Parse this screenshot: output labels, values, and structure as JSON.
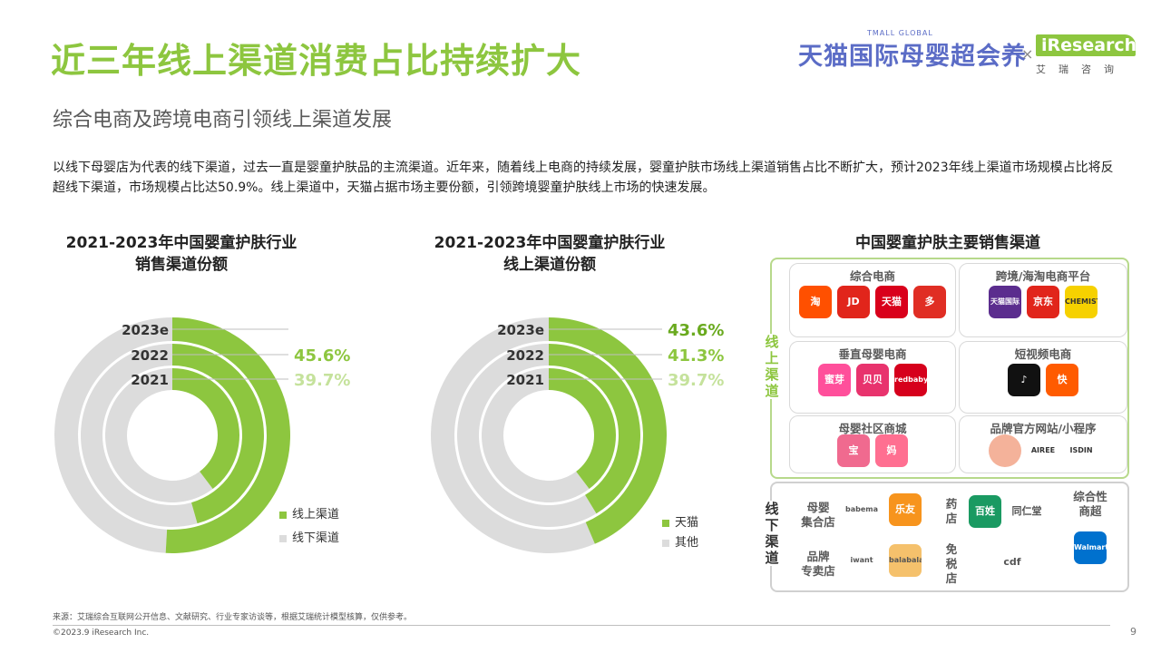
{
  "header": {
    "title": "近三年线上渠道消费占比持续扩大",
    "subtitle": "综合电商及跨境电商引领线上渠道发展",
    "description": "以线下母婴店为代表的线下渠道，过去一直是婴童护肤品的主流渠道。近年来，随着线上电商的持续发展，婴童护肤市场线上渠道销售占比不断扩大，预计2023年线上渠道市场规模占比将反超线下渠道，市场规模占比达50.9%。线上渠道中，天猫占据市场主要份额，引领跨境婴童护肤线上市场的快速发展。"
  },
  "brand": {
    "tmall_global": "TMALL GLOBAL",
    "tmall_name": "天猫国际母婴超会养",
    "times": "×",
    "iresearch": "iResearch",
    "iresearch_cn": "艾瑞咨询"
  },
  "chart_data": [
    {
      "type": "donut",
      "title": "2021-2023年中国婴童护肤行业 销售渠道份额",
      "title_lines": [
        "2021-2023年中国婴童护肤行业",
        "销售渠道份额"
      ],
      "rings": [
        "2023e",
        "2022",
        "2021"
      ],
      "series": [
        {
          "name": "线上渠道",
          "values": [
            50.9,
            45.6,
            39.7
          ]
        },
        {
          "name": "线下渠道",
          "values": [
            49.1,
            54.4,
            60.3
          ]
        }
      ],
      "value_labels": [
        "",
        "45.6%",
        "39.7%"
      ],
      "colors": {
        "线上渠道": "#8dc63f",
        "线下渠道": "#dcdcdc"
      }
    },
    {
      "type": "donut",
      "title": "2021-2023年中国婴童护肤行业 线上渠道份额",
      "title_lines": [
        "2021-2023年中国婴童护肤行业",
        "线上渠道份额"
      ],
      "rings": [
        "2023e",
        "2022",
        "2021"
      ],
      "series": [
        {
          "name": "天猫",
          "values": [
            43.6,
            41.3,
            39.7
          ]
        },
        {
          "name": "其他",
          "values": [
            56.4,
            58.7,
            60.3
          ]
        }
      ],
      "value_labels": [
        "43.6%",
        "41.3%",
        "39.7%"
      ],
      "colors": {
        "天猫": "#8dc63f",
        "其他": "#dcdcdc"
      }
    }
  ],
  "channels": {
    "title": "中国婴童护肤主要销售渠道",
    "online_label": "线上渠道",
    "offline_label": "线下渠道",
    "online_groups": [
      {
        "title": "综合电商",
        "logos": [
          {
            "name": "taobao",
            "text": "淘",
            "color": "#ff5000"
          },
          {
            "name": "jd",
            "text": "JD",
            "color": "#e1251b"
          },
          {
            "name": "tmall",
            "text": "天猫",
            "color": "#d9001b"
          },
          {
            "name": "pinduoduo",
            "text": "多",
            "color": "#e02e24"
          }
        ]
      },
      {
        "title": "跨境/海淘电商平台",
        "logos": [
          {
            "name": "tmall-global",
            "text": "天猫国际",
            "color": "#5b2d8e"
          },
          {
            "name": "jd-global",
            "text": "京东",
            "color": "#e1251b"
          },
          {
            "name": "chemist",
            "text": "CHEMIST",
            "color": "#f6d100"
          }
        ]
      },
      {
        "title": "垂直母婴电商",
        "logos": [
          {
            "name": "mia",
            "text": "蜜芽",
            "color": "#ff4f9b"
          },
          {
            "name": "beibei",
            "text": "贝贝",
            "color": "#e8336d"
          },
          {
            "name": "redbaby",
            "text": "redbaby",
            "color": "#d6001c"
          }
        ]
      },
      {
        "title": "短视频电商",
        "logos": [
          {
            "name": "douyin",
            "text": "♪",
            "color": "#111111"
          },
          {
            "name": "kuaishou",
            "text": "快",
            "color": "#ff5b00"
          }
        ]
      },
      {
        "title": "母婴社区商城",
        "logos": [
          {
            "name": "babytree",
            "text": "宝",
            "color": "#f06a8f"
          },
          {
            "name": "mama",
            "text": "妈",
            "color": "#ff6f91"
          }
        ]
      },
      {
        "title": "品牌官方网站/小程序",
        "logos": [
          {
            "name": "brand-circle",
            "text": "",
            "color": "#f4b29a"
          },
          {
            "name": "airee",
            "text": "AIREE",
            "color": "#ffffff"
          },
          {
            "name": "isdin",
            "text": "ISDIN",
            "color": "#ffffff"
          }
        ]
      }
    ],
    "offline_groups": [
      {
        "title": "母婴集合店",
        "title_lines": [
          "母婴",
          "集合店"
        ],
        "logos": [
          {
            "name": "babemax",
            "text": "babemax",
            "color": "#ffffff"
          },
          {
            "name": "leyou",
            "text": "乐友",
            "color": "#f7941d"
          }
        ]
      },
      {
        "title": "品牌专卖店",
        "title_lines": [
          "品牌",
          "专卖店"
        ],
        "logos": [
          {
            "name": "iwant",
            "text": "iwant",
            "color": "#ffffff"
          },
          {
            "name": "balabala",
            "text": "balabala",
            "color": "#f5c16c"
          }
        ]
      },
      {
        "title": "药店",
        "title_lines": [
          "药",
          "店"
        ],
        "logos": [
          {
            "name": "laobaixing",
            "text": "百姓",
            "color": "#1a9a62"
          },
          {
            "name": "tongrentang",
            "text": "同仁堂",
            "color": "#ffffff"
          }
        ]
      },
      {
        "title": "免税店",
        "title_lines": [
          "免",
          "税",
          "店"
        ],
        "logos": [
          {
            "name": "cdf",
            "text": "cdf",
            "color": "#ffffff"
          }
        ]
      },
      {
        "title": "综合性商超",
        "title_lines": [
          "综合性",
          "商超"
        ],
        "logos": [
          {
            "name": "walmart",
            "text": "Walmart",
            "color": "#0071ce"
          }
        ]
      }
    ]
  },
  "footer": {
    "source": "来源：艾瑞综合互联网公开信息、文献研究、行业专家访谈等，根据艾瑞统计模型核算，仅供参考。",
    "copyright": "©2023.9 iResearch Inc.",
    "page": "9"
  }
}
